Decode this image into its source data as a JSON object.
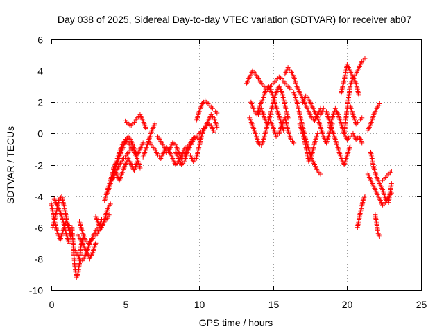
{
  "chart_data": {
    "type": "scatter",
    "title": "Day 038 of 2025, Sidereal Day-to-day VTEC variation (SDTVAR) for receiver ab07",
    "xlabel": "GPS time / hours",
    "ylabel": "SDTVAR / TECUs",
    "xlim": [
      0,
      25
    ],
    "ylim": [
      -10,
      6
    ],
    "xticks": [
      0,
      5,
      10,
      15,
      20,
      25
    ],
    "yticks": [
      -10,
      -8,
      -6,
      -4,
      -2,
      0,
      2,
      4,
      6
    ],
    "grid": true,
    "marker": "plus",
    "color": "#ff0000",
    "tracks": [
      {
        "x": [
          0.0,
          0.2,
          0.4,
          0.6,
          0.8,
          1.0,
          1.2,
          1.4
        ],
        "y": [
          -4.5,
          -5.5,
          -6.3,
          -6.8,
          -6.2,
          -5.6,
          -6.0,
          -6.5
        ]
      },
      {
        "x": [
          0.1,
          0.3,
          0.5,
          0.7,
          0.9,
          1.1,
          1.3
        ],
        "y": [
          -6.0,
          -5.2,
          -4.3,
          -4.0,
          -4.8,
          -5.8,
          -6.6
        ]
      },
      {
        "x": [
          0.2,
          0.4,
          0.6,
          0.8,
          1.0,
          1.2
        ],
        "y": [
          -4.2,
          -4.6,
          -5.0,
          -5.6,
          -6.4,
          -7.0
        ]
      },
      {
        "x": [
          1.4,
          1.5,
          1.6,
          1.7,
          1.8,
          1.9,
          2.0,
          2.1,
          2.2
        ],
        "y": [
          -6.0,
          -7.5,
          -8.6,
          -9.2,
          -9.0,
          -8.3,
          -7.2,
          -6.8,
          -6.6
        ]
      },
      {
        "x": [
          1.6,
          1.8,
          2.0,
          2.2,
          2.4,
          2.6,
          2.8,
          3.0,
          3.2,
          3.4
        ],
        "y": [
          -7.5,
          -7.8,
          -8.2,
          -8.0,
          -7.6,
          -7.0,
          -6.6,
          -6.2,
          -6.0,
          -5.5
        ]
      },
      {
        "x": [
          1.8,
          2.0,
          2.2,
          2.4,
          2.6,
          2.8,
          3.0
        ],
        "y": [
          -6.5,
          -6.8,
          -7.2,
          -7.6,
          -8.0,
          -7.6,
          -7.0
        ]
      },
      {
        "x": [
          1.9,
          2.1,
          2.3,
          2.5,
          2.7,
          2.9,
          3.1,
          3.3,
          3.5,
          3.7,
          3.9
        ],
        "y": [
          -5.6,
          -6.3,
          -6.8,
          -7.0,
          -6.8,
          -6.6,
          -6.4,
          -6.1,
          -5.8,
          -5.5,
          -5.2
        ]
      },
      {
        "x": [
          3.0,
          3.2,
          3.4,
          3.6,
          3.8,
          4.0
        ],
        "y": [
          -5.3,
          -5.8,
          -6.0,
          -5.5,
          -4.8,
          -4.5
        ]
      },
      {
        "x": [
          3.6,
          3.8,
          4.0,
          4.2,
          4.4,
          4.6,
          4.8,
          5.0,
          5.2,
          5.4,
          5.6,
          5.8,
          6.0
        ],
        "y": [
          -4.3,
          -3.6,
          -3.0,
          -2.3,
          -1.8,
          -1.2,
          -0.7,
          -0.4,
          -0.6,
          -0.9,
          -1.2,
          -1.6,
          -2.2
        ]
      },
      {
        "x": [
          3.8,
          4.0,
          4.2,
          4.4,
          4.6,
          4.8,
          5.0,
          5.2,
          5.4,
          5.6
        ],
        "y": [
          -3.8,
          -3.2,
          -2.8,
          -2.4,
          -2.0,
          -1.7,
          -1.5,
          -1.2,
          -1.0,
          -0.8
        ]
      },
      {
        "x": [
          4.0,
          4.2,
          4.4,
          4.6,
          4.8,
          5.0,
          5.2,
          5.4,
          5.6,
          5.8,
          6.0,
          6.2
        ],
        "y": [
          -3.0,
          -2.5,
          -2.0,
          -1.5,
          -1.0,
          -0.5,
          -0.2,
          -0.5,
          -1.0,
          -1.4,
          -1.0,
          -0.6
        ]
      },
      {
        "x": [
          4.2,
          4.4,
          4.6,
          4.8,
          5.0,
          5.2,
          5.4,
          5.6,
          5.8
        ],
        "y": [
          -2.2,
          -2.6,
          -3.0,
          -2.5,
          -2.0,
          -1.6,
          -2.0,
          -2.4,
          -1.8
        ]
      },
      {
        "x": [
          5.0,
          5.2,
          5.4,
          5.6,
          5.8,
          6.0,
          6.2,
          6.4
        ],
        "y": [
          0.8,
          0.6,
          0.5,
          0.7,
          1.0,
          1.2,
          0.8,
          0.3
        ]
      },
      {
        "x": [
          6.2,
          6.4,
          6.6,
          6.8,
          7.0
        ],
        "y": [
          -1.5,
          -1.0,
          -0.4,
          0.2,
          0.6
        ]
      },
      {
        "x": [
          6.6,
          6.8,
          7.0,
          7.2,
          7.4,
          7.6,
          7.8,
          8.0,
          8.2,
          8.4,
          8.6,
          8.8,
          9.0,
          9.2
        ],
        "y": [
          -0.5,
          -0.8,
          -1.0,
          -1.4,
          -1.6,
          -1.2,
          -0.9,
          -1.2,
          -1.6,
          -2.0,
          -1.8,
          -1.4,
          -1.0,
          -0.8
        ]
      },
      {
        "x": [
          7.2,
          7.4,
          7.6,
          7.8,
          8.0,
          8.2,
          8.4,
          8.6,
          8.8,
          9.0,
          9.2,
          9.4,
          9.6,
          9.8,
          10.0
        ],
        "y": [
          -0.2,
          -0.5,
          -0.8,
          -1.2,
          -1.0,
          -0.6,
          -0.7,
          -1.2,
          -1.6,
          -1.4,
          -1.0,
          -0.6,
          -0.3,
          -0.2,
          -0.4
        ]
      },
      {
        "x": [
          8.4,
          8.6,
          8.8,
          9.0,
          9.2,
          9.4,
          9.6,
          9.8,
          10.0,
          10.2,
          10.4,
          10.6,
          10.8,
          11.0
        ],
        "y": [
          -1.2,
          -1.6,
          -2.0,
          -1.8,
          -1.2,
          -0.8,
          -0.4,
          -0.2,
          0.0,
          0.2,
          0.4,
          0.6,
          0.5,
          0.1
        ]
      },
      {
        "x": [
          9.4,
          9.6,
          9.8,
          10.0,
          10.2,
          10.4,
          10.6,
          10.8,
          11.0,
          11.2
        ],
        "y": [
          -1.4,
          -1.8,
          -1.6,
          -0.8,
          0.0,
          0.4,
          0.8,
          1.2,
          1.0,
          0.4
        ]
      },
      {
        "x": [
          9.8,
          10.0,
          10.2,
          10.4,
          10.6,
          10.8,
          11.0,
          11.2
        ],
        "y": [
          0.8,
          1.4,
          1.9,
          2.1,
          1.9,
          1.7,
          1.5,
          1.3
        ]
      },
      {
        "x": [
          13.2,
          13.4,
          13.6,
          13.8,
          14.0,
          14.2,
          14.4,
          14.6,
          14.8,
          15.0,
          15.2,
          15.4,
          15.6,
          15.8,
          16.0,
          16.2
        ],
        "y": [
          3.2,
          3.6,
          4.0,
          3.8,
          3.5,
          3.2,
          3.0,
          2.8,
          3.0,
          3.2,
          3.4,
          3.6,
          3.5,
          3.2,
          3.0,
          2.8
        ]
      },
      {
        "x": [
          13.4,
          13.6,
          13.8,
          14.0,
          14.2,
          14.4,
          14.6,
          14.8,
          15.0,
          15.2,
          15.4,
          15.6,
          15.8,
          16.0
        ],
        "y": [
          1.0,
          0.5,
          0.0,
          -0.6,
          -0.8,
          -0.2,
          0.5,
          1.2,
          2.0,
          2.6,
          3.0,
          2.6,
          1.8,
          1.0
        ]
      },
      {
        "x": [
          13.5,
          13.7,
          13.9,
          14.1,
          14.3,
          14.5,
          14.7,
          14.9,
          15.1,
          15.3,
          15.5,
          15.7
        ],
        "y": [
          2.0,
          1.5,
          1.2,
          1.8,
          2.2,
          2.8,
          3.0,
          2.6,
          2.0,
          1.4,
          0.8,
          0.2
        ]
      },
      {
        "x": [
          14.0,
          14.2,
          14.4,
          14.6,
          14.8,
          15.0,
          15.2,
          15.4,
          15.6,
          15.8,
          16.0,
          16.2,
          16.4
        ],
        "y": [
          1.2,
          1.6,
          1.0,
          0.6,
          0.8,
          0.4,
          -0.2,
          0.0,
          0.6,
          1.0,
          0.2,
          -0.4,
          -0.6
        ]
      },
      {
        "x": [
          15.8,
          16.0,
          16.2,
          16.4,
          16.6,
          16.8,
          17.0,
          17.2,
          17.4,
          17.6,
          17.8,
          18.0,
          18.2
        ],
        "y": [
          3.8,
          4.2,
          4.0,
          3.6,
          3.0,
          2.6,
          2.2,
          1.8,
          1.4,
          1.0,
          0.8,
          1.2,
          1.6
        ]
      },
      {
        "x": [
          16.4,
          16.6,
          16.8,
          17.0,
          17.2,
          17.4,
          17.6,
          17.8,
          18.0,
          18.2
        ],
        "y": [
          2.6,
          2.0,
          1.2,
          0.4,
          -0.4,
          -1.0,
          -1.6,
          -2.0,
          -2.4,
          -2.6
        ]
      },
      {
        "x": [
          16.8,
          17.0,
          17.2,
          17.4,
          17.6,
          17.8,
          18.0
        ],
        "y": [
          0.6,
          0.0,
          -0.8,
          -1.8,
          -1.4,
          -0.6,
          0.0
        ]
      },
      {
        "x": [
          17.0,
          17.2,
          17.4,
          17.6,
          17.8,
          18.0,
          18.2,
          18.4,
          18.6,
          18.8,
          19.0
        ],
        "y": [
          2.0,
          2.4,
          2.2,
          1.8,
          1.4,
          1.0,
          0.4,
          -0.2,
          -0.6,
          0.0,
          0.6
        ]
      },
      {
        "x": [
          18.2,
          18.4,
          18.6,
          18.8,
          19.0,
          19.2,
          19.4,
          19.6,
          19.8,
          20.0,
          20.2
        ],
        "y": [
          1.2,
          1.6,
          1.4,
          0.8,
          0.2,
          -0.4,
          -1.0,
          -1.6,
          -2.0,
          -1.4,
          -0.8
        ]
      },
      {
        "x": [
          18.8,
          19.0,
          19.2,
          19.4,
          19.6,
          19.8,
          20.0,
          20.2,
          20.4,
          20.6,
          20.8,
          21.0
        ],
        "y": [
          0.4,
          1.0,
          1.6,
          1.2,
          0.6,
          0.0,
          -0.4,
          -0.2,
          0.0,
          -0.4,
          -0.2,
          -0.6
        ]
      },
      {
        "x": [
          19.6,
          19.8,
          20.0,
          20.2,
          20.4,
          20.6,
          20.8,
          21.0,
          21.2
        ],
        "y": [
          2.6,
          3.4,
          4.4,
          4.0,
          3.6,
          3.8,
          4.2,
          4.6,
          4.8
        ]
      },
      {
        "x": [
          19.8,
          20.0,
          20.2,
          20.4,
          20.6,
          20.8
        ],
        "y": [
          0.0,
          1.6,
          3.0,
          3.6,
          3.2,
          2.4
        ]
      },
      {
        "x": [
          20.2,
          20.4,
          20.6,
          20.8,
          21.0
        ],
        "y": [
          1.8,
          1.2,
          0.6,
          0.8,
          1.0
        ]
      },
      {
        "x": [
          20.7,
          20.8,
          20.9,
          21.0,
          21.1,
          21.2
        ],
        "y": [
          -6.0,
          -5.5,
          -5.0,
          -4.6,
          -4.2,
          -4.0
        ]
      },
      {
        "x": [
          21.4,
          21.6,
          21.8,
          22.0,
          22.2,
          22.4,
          22.6,
          22.8,
          23.0
        ],
        "y": [
          -2.6,
          -3.0,
          -3.4,
          -3.8,
          -4.2,
          -4.6,
          -4.4,
          -4.0,
          -3.8
        ]
      },
      {
        "x": [
          21.4,
          21.6,
          21.8,
          22.0,
          22.2
        ],
        "y": [
          0.2,
          0.6,
          1.2,
          1.6,
          1.9
        ]
      },
      {
        "x": [
          21.6,
          21.8,
          22.0,
          22.2,
          22.4,
          22.6,
          22.8,
          23.0
        ],
        "y": [
          -1.2,
          -2.2,
          -2.8,
          -3.2,
          -3.6,
          -4.2,
          -4.4,
          -3.2
        ]
      },
      {
        "x": [
          21.9,
          22.0,
          22.1,
          22.2
        ],
        "y": [
          -5.2,
          -5.8,
          -6.4,
          -6.6
        ]
      },
      {
        "x": [
          22.4,
          22.6,
          22.8,
          23.0
        ],
        "y": [
          -3.0,
          -2.8,
          -2.6,
          -2.4
        ]
      }
    ]
  }
}
